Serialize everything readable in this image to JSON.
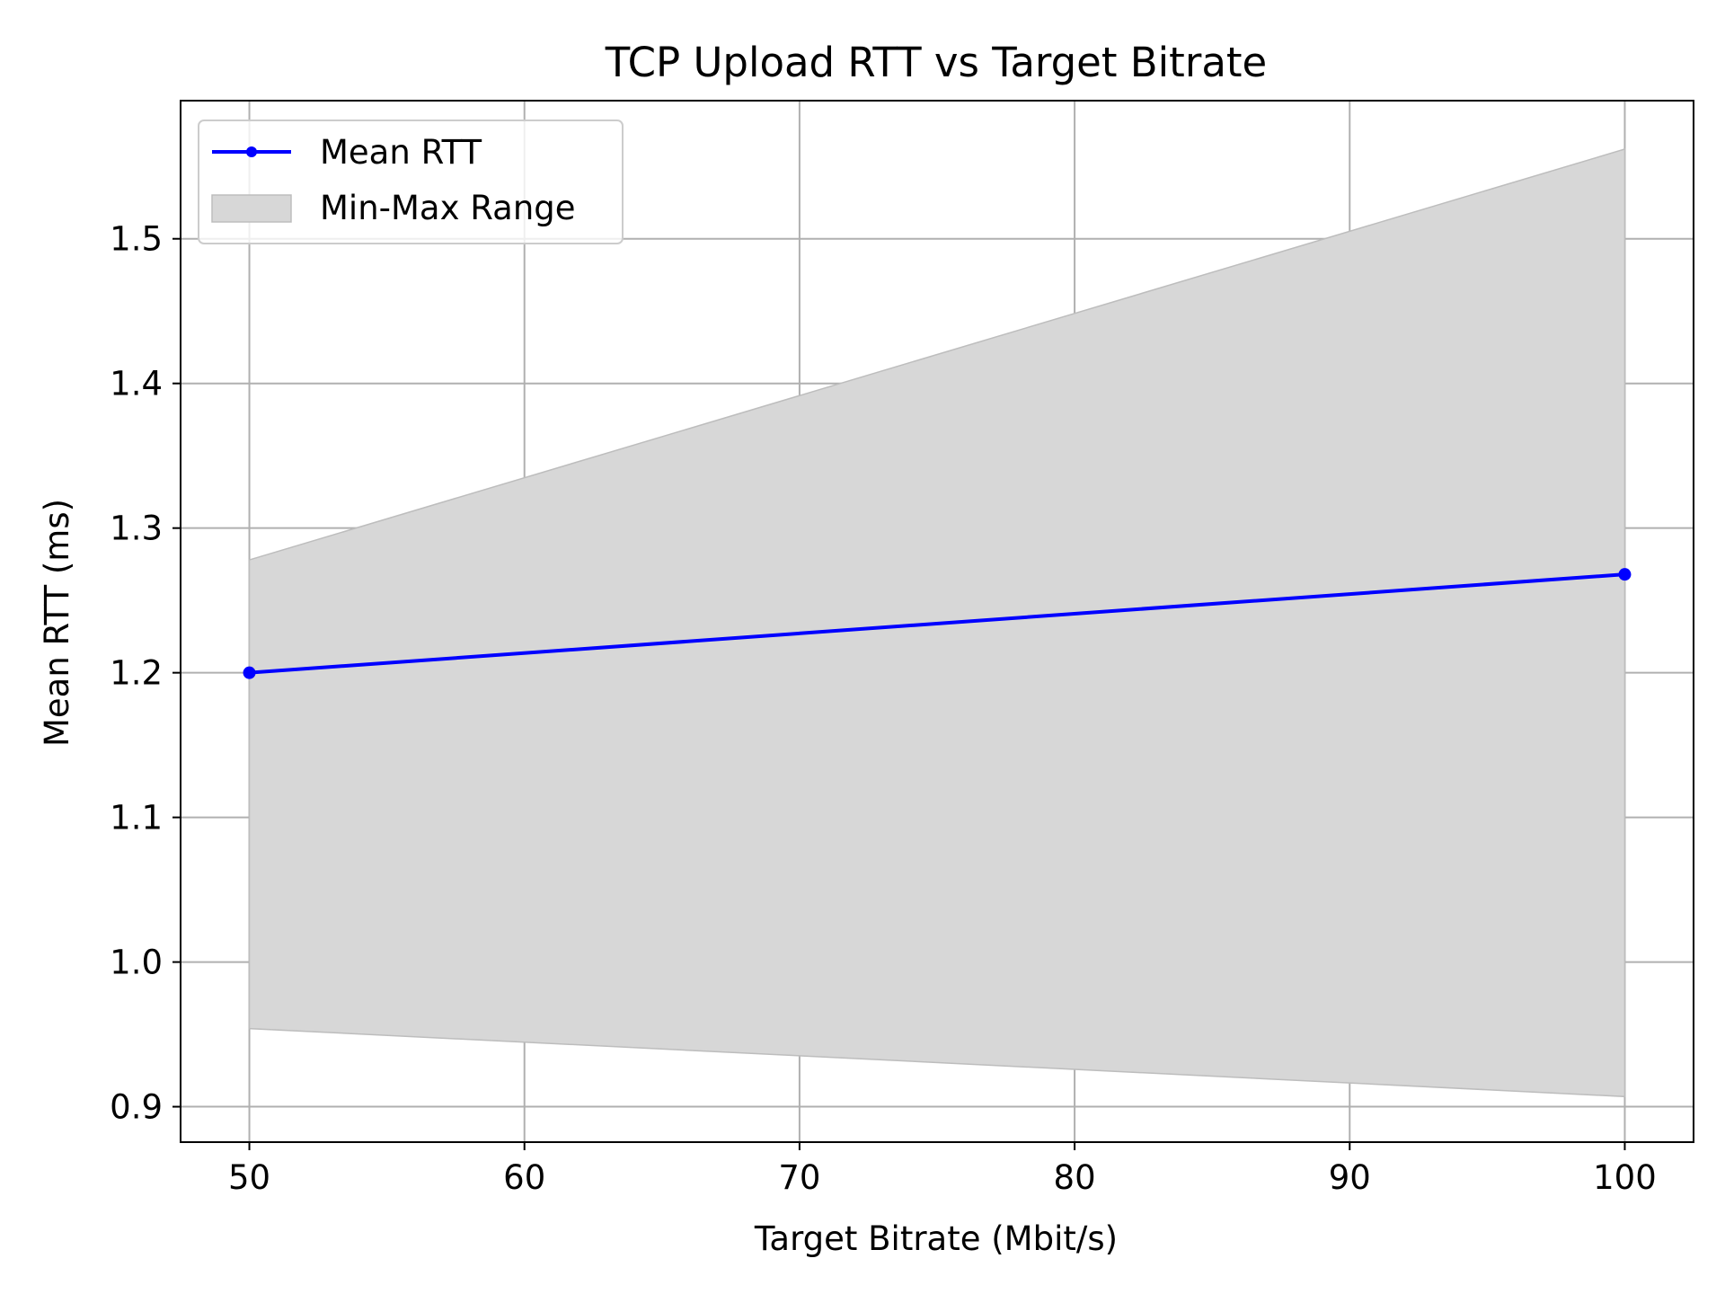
{
  "chart_data": {
    "type": "line",
    "title": "TCP Upload RTT vs Target Bitrate",
    "xlabel": "Target Bitrate (Mbit/s)",
    "ylabel": "Mean RTT (ms)",
    "x": [
      50,
      100
    ],
    "xlim": [
      47.5,
      102.5
    ],
    "ylim": [
      0.8755,
      1.5955
    ],
    "xticks": [
      50,
      60,
      70,
      80,
      90,
      100
    ],
    "xtick_labels": [
      "50",
      "60",
      "70",
      "80",
      "90",
      "100"
    ],
    "yticks": [
      0.9,
      1.0,
      1.1,
      1.2,
      1.3,
      1.4,
      1.5
    ],
    "ytick_labels": [
      "0.9",
      "1.0",
      "1.1",
      "1.2",
      "1.3",
      "1.4",
      "1.5"
    ],
    "grid": true,
    "legend_position": "top-left",
    "series": [
      {
        "name": "Mean RTT",
        "kind": "line",
        "marker": "circle",
        "color": "#0000ff",
        "values": [
          1.2,
          1.268
        ]
      }
    ],
    "band": {
      "name": "Min-Max Range",
      "color": "#d7d7d7",
      "edge_color": "#bdbdbd",
      "lower": [
        0.954,
        0.907
      ],
      "upper": [
        1.278,
        1.562
      ]
    }
  }
}
